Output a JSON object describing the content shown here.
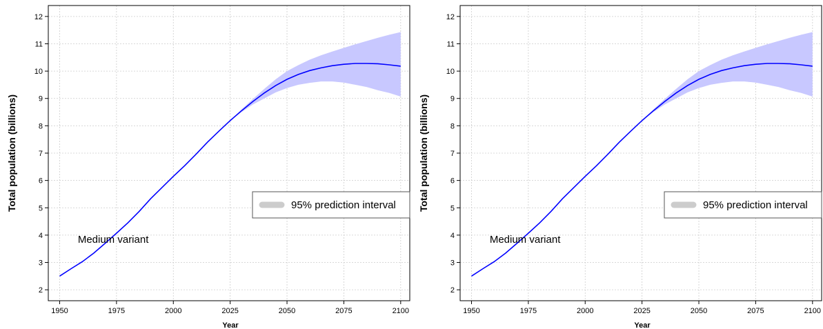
{
  "chart_data": [
    {
      "type": "line",
      "title": "",
      "xlabel": "Year",
      "ylabel": "Total population (billions)",
      "xlim": [
        1945,
        2104
      ],
      "ylim": [
        1.6,
        12.4
      ],
      "xticks": [
        1950,
        1975,
        2000,
        2025,
        2050,
        2075,
        2100
      ],
      "yticks": [
        2,
        3,
        4,
        5,
        6,
        7,
        8,
        9,
        10,
        11,
        12
      ],
      "grid": true,
      "legend": {
        "position": "middle-right",
        "entries": [
          "95% prediction interval"
        ]
      },
      "annotation": "Medium variant",
      "colors": {
        "line": "#0000ff",
        "band": "#c8c8ff",
        "legend_swatch": "#cccccc",
        "grid": "#cccccc"
      },
      "series": [
        {
          "type": "line",
          "x": [
            1950,
            1955,
            1960,
            1965,
            1970,
            1975,
            1980,
            1985,
            1990,
            1995,
            2000,
            2005,
            2010,
            2015,
            2020,
            2025,
            2030,
            2035,
            2040,
            2045,
            2050,
            2055,
            2060,
            2065,
            2070,
            2075,
            2080,
            2085,
            2090,
            2095,
            2100
          ],
          "values": [
            2.5,
            2.77,
            3.03,
            3.34,
            3.7,
            4.07,
            4.45,
            4.87,
            5.33,
            5.74,
            6.15,
            6.54,
            6.96,
            7.4,
            7.8,
            8.19,
            8.55,
            8.89,
            9.2,
            9.47,
            9.7,
            9.88,
            10.02,
            10.12,
            10.2,
            10.25,
            10.28,
            10.28,
            10.27,
            10.23,
            10.18
          ]
        },
        {
          "type": "band",
          "x": [
            2025,
            2030,
            2035,
            2040,
            2045,
            2050,
            2055,
            2060,
            2065,
            2070,
            2075,
            2080,
            2085,
            2090,
            2095,
            2100
          ],
          "lower": [
            8.19,
            8.5,
            8.78,
            9.0,
            9.22,
            9.38,
            9.5,
            9.57,
            9.62,
            9.62,
            9.58,
            9.5,
            9.42,
            9.3,
            9.2,
            9.07
          ],
          "upper": [
            8.19,
            8.6,
            8.98,
            9.35,
            9.7,
            10.0,
            10.22,
            10.42,
            10.58,
            10.72,
            10.85,
            10.98,
            11.1,
            11.22,
            11.33,
            11.43
          ]
        }
      ]
    },
    {
      "type": "line",
      "title": "",
      "xlabel": "Year",
      "ylabel": "Total population (billions)",
      "xlim": [
        1945,
        2104
      ],
      "ylim": [
        1.6,
        12.4
      ],
      "xticks": [
        1950,
        1975,
        2000,
        2025,
        2050,
        2075,
        2100
      ],
      "yticks": [
        2,
        3,
        4,
        5,
        6,
        7,
        8,
        9,
        10,
        11,
        12
      ],
      "grid": true,
      "legend": {
        "position": "middle-right",
        "entries": [
          "95% prediction interval"
        ]
      },
      "annotation": "Medium variant",
      "colors": {
        "line": "#0000ff",
        "band": "#c8c8ff",
        "legend_swatch": "#cccccc",
        "grid": "#cccccc"
      },
      "series": [
        {
          "type": "line",
          "x": [
            1950,
            1955,
            1960,
            1965,
            1970,
            1975,
            1980,
            1985,
            1990,
            1995,
            2000,
            2005,
            2010,
            2015,
            2020,
            2025,
            2030,
            2035,
            2040,
            2045,
            2050,
            2055,
            2060,
            2065,
            2070,
            2075,
            2080,
            2085,
            2090,
            2095,
            2100
          ],
          "values": [
            2.5,
            2.77,
            3.03,
            3.34,
            3.7,
            4.07,
            4.45,
            4.87,
            5.33,
            5.74,
            6.15,
            6.54,
            6.96,
            7.4,
            7.8,
            8.19,
            8.55,
            8.89,
            9.2,
            9.47,
            9.7,
            9.88,
            10.02,
            10.12,
            10.2,
            10.25,
            10.28,
            10.28,
            10.27,
            10.23,
            10.18
          ]
        },
        {
          "type": "band",
          "x": [
            2025,
            2030,
            2035,
            2040,
            2045,
            2050,
            2055,
            2060,
            2065,
            2070,
            2075,
            2080,
            2085,
            2090,
            2095,
            2100
          ],
          "lower": [
            8.19,
            8.5,
            8.78,
            9.0,
            9.22,
            9.38,
            9.5,
            9.57,
            9.62,
            9.62,
            9.58,
            9.5,
            9.42,
            9.3,
            9.2,
            9.07
          ],
          "upper": [
            8.19,
            8.6,
            8.98,
            9.35,
            9.7,
            10.0,
            10.22,
            10.42,
            10.58,
            10.72,
            10.85,
            10.98,
            11.1,
            11.22,
            11.33,
            11.43
          ]
        }
      ]
    }
  ]
}
